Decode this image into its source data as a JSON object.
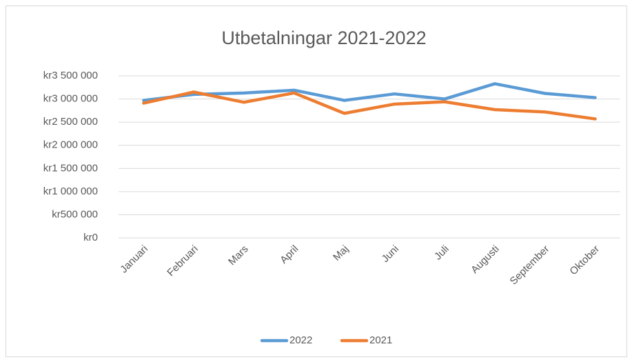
{
  "chart_data": {
    "type": "line",
    "title": "Utbetalningar 2021-2022",
    "categories": [
      "Januari",
      "Februari",
      "Mars",
      "April",
      "Maj",
      "Juni",
      "Juli",
      "Augusti",
      "September",
      "Oktober"
    ],
    "series": [
      {
        "name": "2022",
        "color": "#5b9bd5",
        "values": [
          2970000,
          3100000,
          3130000,
          3190000,
          2970000,
          3110000,
          3000000,
          3330000,
          3120000,
          3030000
        ]
      },
      {
        "name": "2021",
        "color": "#ed7d31",
        "values": [
          2910000,
          3150000,
          2930000,
          3130000,
          2690000,
          2890000,
          2940000,
          2770000,
          2720000,
          2570000
        ]
      }
    ],
    "ylim": [
      0,
      3500000
    ],
    "yticks": [
      {
        "value": 0,
        "label": "kr0"
      },
      {
        "value": 500000,
        "label": "kr500 000"
      },
      {
        "value": 1000000,
        "label": "kr1 000 000"
      },
      {
        "value": 1500000,
        "label": "kr1 500 000"
      },
      {
        "value": 2000000,
        "label": "kr2 000 000"
      },
      {
        "value": 2500000,
        "label": "kr2 500 000"
      },
      {
        "value": 3000000,
        "label": "kr3 000 000"
      },
      {
        "value": 3500000,
        "label": "kr3 500 000"
      }
    ],
    "grid": true,
    "legend": "bottom"
  }
}
